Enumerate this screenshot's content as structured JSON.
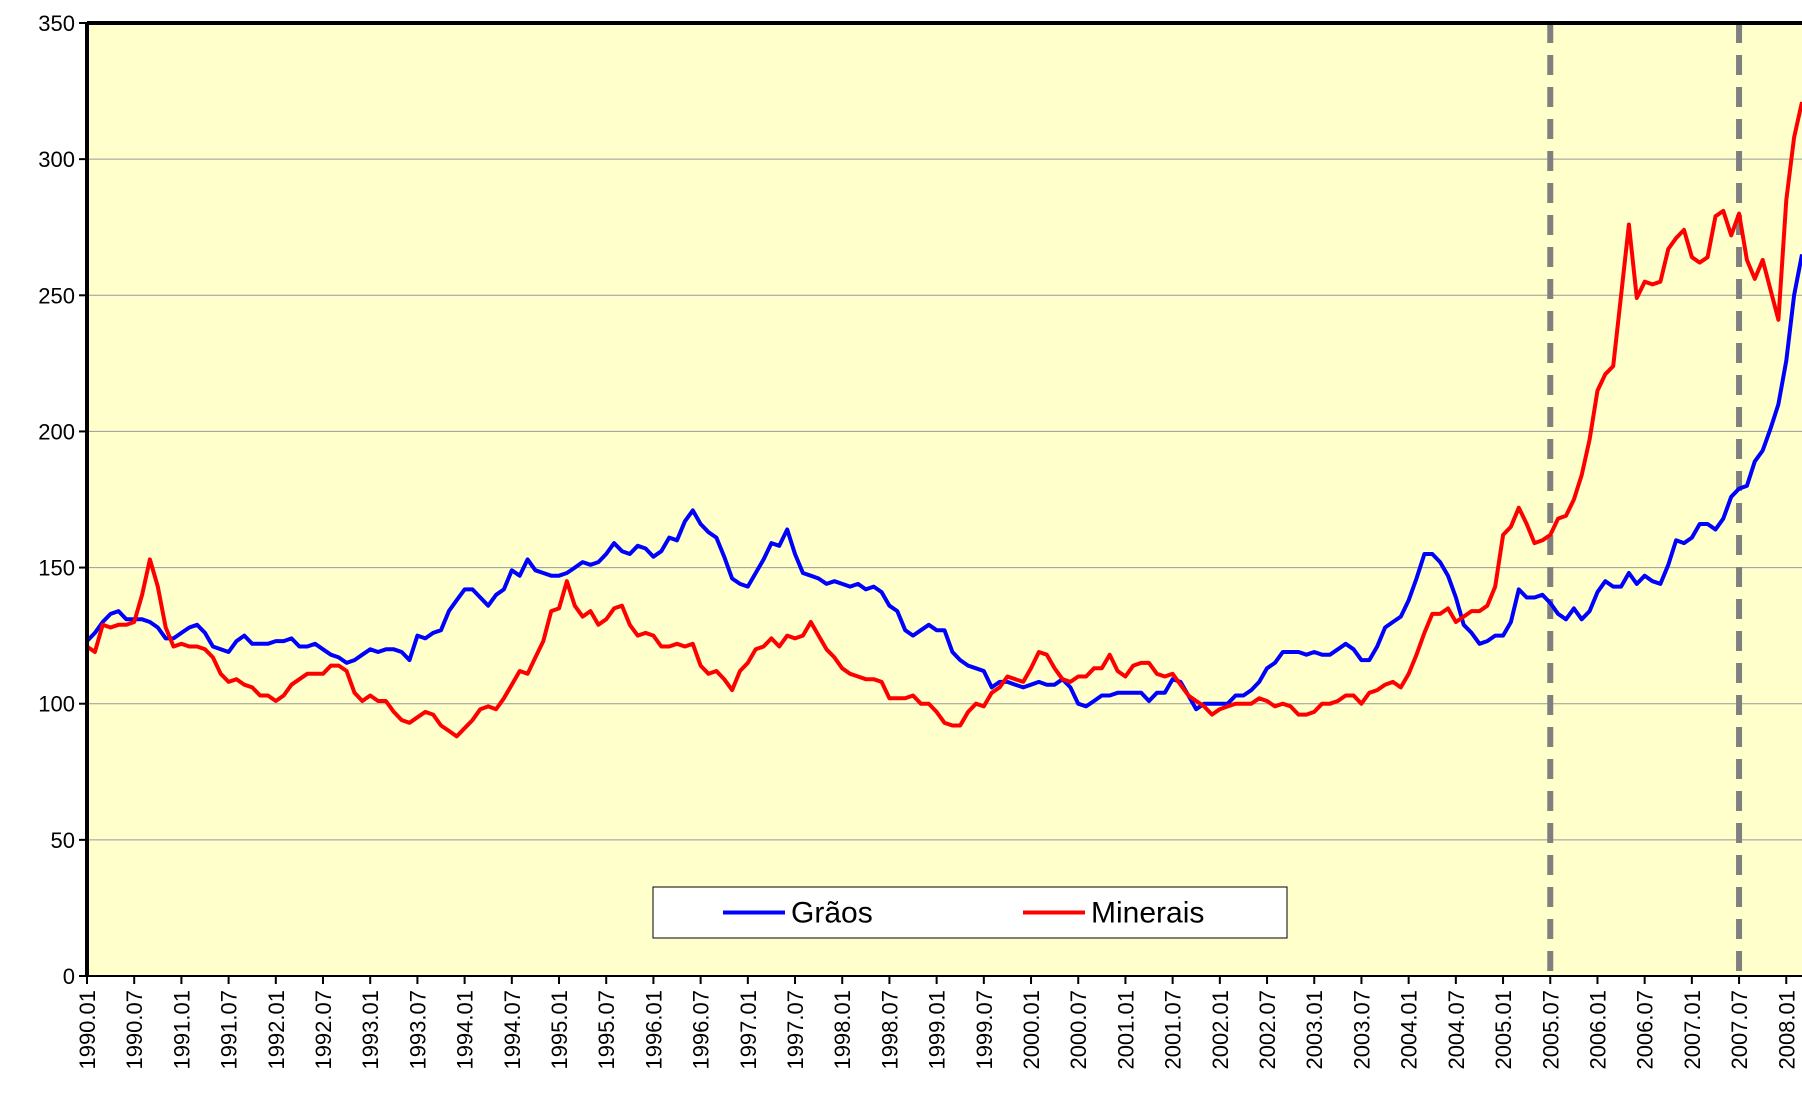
{
  "chart_data": {
    "type": "line",
    "categories": [
      "1990.01",
      null,
      null,
      null,
      null,
      null,
      "1990.07",
      null,
      null,
      null,
      null,
      null,
      "1991.01",
      null,
      null,
      null,
      null,
      null,
      "1991.07",
      null,
      null,
      null,
      null,
      null,
      "1992.01",
      null,
      null,
      null,
      null,
      null,
      "1992.07",
      null,
      null,
      null,
      null,
      null,
      "1993.01",
      null,
      null,
      null,
      null,
      null,
      "1993.07",
      null,
      null,
      null,
      null,
      null,
      "1994.01",
      null,
      null,
      null,
      null,
      null,
      "1994.07",
      null,
      null,
      null,
      null,
      null,
      "1995.01",
      null,
      null,
      null,
      null,
      null,
      "1995.07",
      null,
      null,
      null,
      null,
      null,
      "1996.01",
      null,
      null,
      null,
      null,
      null,
      "1996.07",
      null,
      null,
      null,
      null,
      null,
      "1997.01",
      null,
      null,
      null,
      null,
      null,
      "1997.07",
      null,
      null,
      null,
      null,
      null,
      "1998.01",
      null,
      null,
      null,
      null,
      null,
      "1998.07",
      null,
      null,
      null,
      null,
      null,
      "1999.01",
      null,
      null,
      null,
      null,
      null,
      "1999.07",
      null,
      null,
      null,
      null,
      null,
      "2000.01",
      null,
      null,
      null,
      null,
      null,
      "2000.07",
      null,
      null,
      null,
      null,
      null,
      "2001.01",
      null,
      null,
      null,
      null,
      null,
      "2001.07",
      null,
      null,
      null,
      null,
      null,
      "2002.01",
      null,
      null,
      null,
      null,
      null,
      "2002.07",
      null,
      null,
      null,
      null,
      null,
      "2003.01",
      null,
      null,
      null,
      null,
      null,
      "2003.07",
      null,
      null,
      null,
      null,
      null,
      "2004.01",
      null,
      null,
      null,
      null,
      null,
      "2004.07",
      null,
      null,
      null,
      null,
      null,
      "2005.01",
      null,
      null,
      null,
      null,
      null,
      "2005.07",
      null,
      null,
      null,
      null,
      null,
      "2006.01",
      null,
      null,
      null,
      null,
      null,
      "2006.07",
      null,
      null,
      null,
      null,
      null,
      "2007.01",
      null,
      null,
      null,
      null,
      null,
      "2007.07",
      null,
      null,
      null,
      null,
      null,
      "2008.01",
      null,
      null
    ],
    "series": [
      {
        "name": "Grãos",
        "color": "#0000ff",
        "values": [
          123,
          126,
          130,
          133,
          134,
          131,
          131,
          131,
          130,
          128,
          124,
          124,
          126,
          128,
          129,
          126,
          121,
          120,
          119,
          123,
          125,
          122,
          122,
          122,
          123,
          123,
          124,
          121,
          121,
          122,
          120,
          118,
          117,
          115,
          116,
          118,
          120,
          119,
          120,
          120,
          119,
          116,
          125,
          124,
          126,
          127,
          134,
          138,
          142,
          142,
          139,
          136,
          140,
          142,
          149,
          147,
          153,
          149,
          148,
          147,
          147,
          148,
          150,
          152,
          151,
          152,
          155,
          159,
          156,
          155,
          158,
          157,
          154,
          156,
          161,
          160,
          167,
          171,
          166,
          163,
          161,
          154,
          146,
          144,
          143,
          148,
          153,
          159,
          158,
          164,
          155,
          148,
          147,
          146,
          144,
          145,
          144,
          143,
          144,
          142,
          143,
          141,
          136,
          134,
          127,
          125,
          127,
          129,
          127,
          127,
          119,
          116,
          114,
          113,
          112,
          106,
          108,
          108,
          107,
          106,
          107,
          108,
          107,
          107,
          109,
          106,
          100,
          99,
          101,
          103,
          103,
          104,
          104,
          104,
          104,
          101,
          104,
          104,
          109,
          108,
          103,
          98,
          100,
          100,
          100,
          100,
          103,
          103,
          105,
          108,
          113,
          115,
          119,
          119,
          119,
          118,
          119,
          118,
          118,
          120,
          122,
          120,
          116,
          116,
          121,
          128,
          130,
          132,
          138,
          146,
          155,
          155,
          152,
          147,
          139,
          129,
          126,
          122,
          123,
          125,
          125,
          130,
          142,
          139,
          139,
          140,
          137,
          133,
          131,
          135,
          131,
          134,
          141,
          145,
          143,
          143,
          148,
          144,
          147,
          145,
          144,
          151,
          160,
          159,
          161,
          166,
          166,
          164,
          168,
          176,
          179,
          180,
          189,
          193,
          201,
          210,
          226,
          250,
          265
        ]
      },
      {
        "name": "Minerais",
        "color": "#ff0000",
        "values": [
          121,
          119,
          129,
          128,
          129,
          129,
          130,
          140,
          153,
          143,
          128,
          121,
          122,
          121,
          121,
          120,
          117,
          111,
          108,
          109,
          107,
          106,
          103,
          103,
          101,
          103,
          107,
          109,
          111,
          111,
          111,
          114,
          114,
          112,
          104,
          101,
          103,
          101,
          101,
          97,
          94,
          93,
          95,
          97,
          96,
          92,
          90,
          88,
          91,
          94,
          98,
          99,
          98,
          102,
          107,
          112,
          111,
          117,
          123,
          134,
          135,
          145,
          136,
          132,
          134,
          129,
          131,
          135,
          136,
          129,
          125,
          126,
          125,
          121,
          121,
          122,
          121,
          122,
          114,
          111,
          112,
          109,
          105,
          112,
          115,
          120,
          121,
          124,
          121,
          125,
          124,
          125,
          130,
          125,
          120,
          117,
          113,
          111,
          110,
          109,
          109,
          108,
          102,
          102,
          102,
          103,
          100,
          100,
          97,
          93,
          92,
          92,
          97,
          100,
          99,
          104,
          106,
          110,
          109,
          108,
          113,
          119,
          118,
          113,
          109,
          108,
          110,
          110,
          113,
          113,
          118,
          112,
          110,
          114,
          115,
          115,
          111,
          110,
          111,
          107,
          103,
          101,
          99,
          96,
          98,
          99,
          100,
          100,
          100,
          102,
          101,
          99,
          100,
          99,
          96,
          96,
          97,
          100,
          100,
          101,
          103,
          103,
          100,
          104,
          105,
          107,
          108,
          106,
          111,
          118,
          126,
          133,
          133,
          135,
          130,
          132,
          134,
          134,
          136,
          143,
          162,
          165,
          172,
          166,
          159,
          160,
          162,
          168,
          169,
          175,
          184,
          197,
          215,
          221,
          224,
          250,
          276,
          249,
          255,
          254,
          255,
          267,
          271,
          274,
          264,
          262,
          264,
          279,
          281,
          272,
          280,
          263,
          256,
          263,
          252,
          241,
          285,
          308,
          321
        ]
      }
    ],
    "ylim": [
      0,
      350
    ],
    "yticks": [
      0,
      50,
      100,
      150,
      200,
      250,
      300,
      350
    ],
    "grid": true,
    "background": "#ffffcc",
    "legend": "bottom",
    "reference_lines": [
      "2005.07",
      "2007.07"
    ]
  }
}
